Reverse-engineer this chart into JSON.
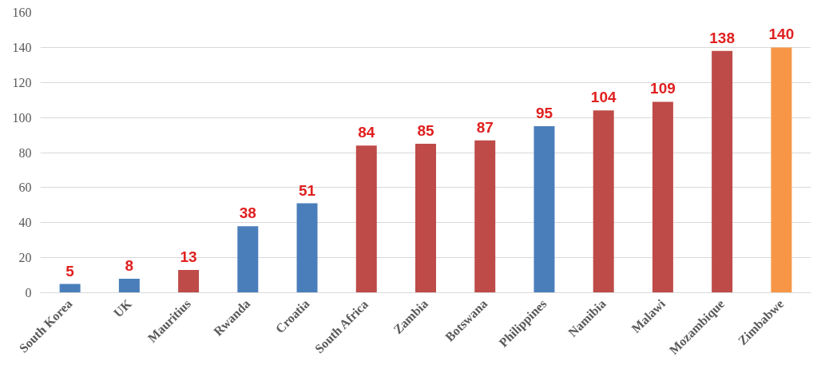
{
  "chart_data": {
    "type": "bar",
    "categories": [
      "South Korea",
      "UK",
      "Mauritius",
      "Rwanda",
      "Croatia",
      "South Africa",
      "Zambia",
      "Botswana",
      "Philippines",
      "Namibia",
      "Malawi",
      "Mozambique",
      "Zimbabwe"
    ],
    "values": [
      5,
      8,
      13,
      38,
      51,
      84,
      85,
      87,
      95,
      104,
      109,
      138,
      140
    ],
    "colors": [
      "#4a7ebb",
      "#4a7ebb",
      "#be4b48",
      "#4a7ebb",
      "#4a7ebb",
      "#be4b48",
      "#be4b48",
      "#be4b48",
      "#4a7ebb",
      "#be4b48",
      "#be4b48",
      "#be4b48",
      "#f79646"
    ],
    "ylim": [
      0,
      160
    ],
    "yticks": [
      0,
      20,
      40,
      60,
      80,
      100,
      120,
      140,
      160
    ],
    "grid": "y",
    "data_labels": true
  }
}
